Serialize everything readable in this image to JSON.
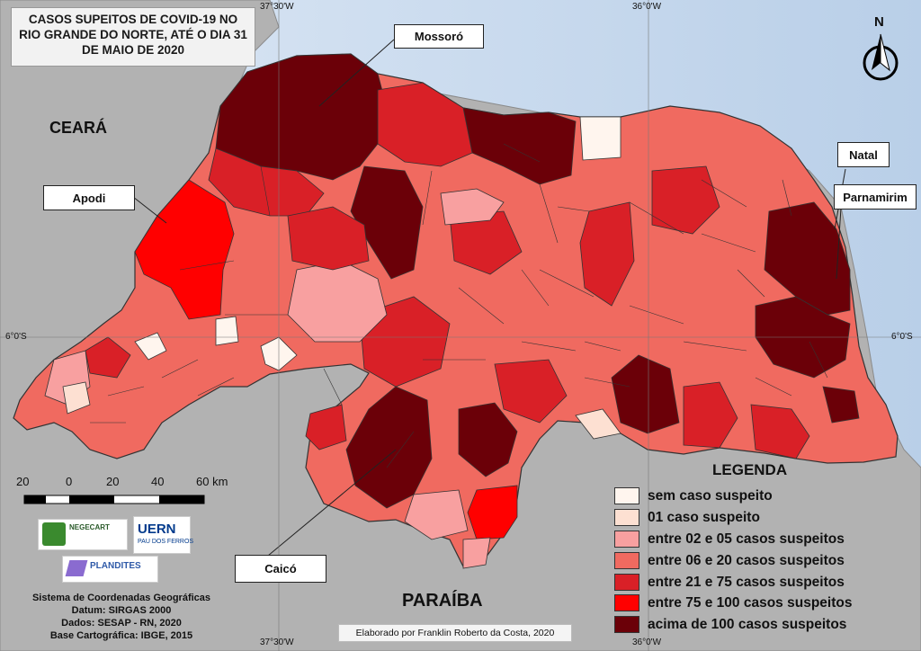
{
  "title": {
    "line1": "CASOS SUPEITOS DE COVID-19 NO",
    "line2": "RIO GRANDE DO NORTE, ATÉ O DIA 31",
    "line3": "DE MAIO DE 2020"
  },
  "regions": {
    "west": "CEARÁ",
    "south": "PARAÍBA"
  },
  "callouts": {
    "mossoro": "Mossoró",
    "apodi": "Apodi",
    "natal": "Natal",
    "parnamirim": "Parnamirim",
    "caico": "Caicó"
  },
  "coordinates": {
    "lon_top_left": "37°30'W",
    "lon_top_right": "36°0'W",
    "lon_bottom_left": "37°30'W",
    "lon_bottom_right": "36°0'W",
    "lat_left": "6°0'S",
    "lat_right": "6°0'S"
  },
  "north_arrow": "N",
  "scale_bar": {
    "labels": [
      "20",
      "0",
      "20",
      "40",
      "60 km"
    ]
  },
  "legend": {
    "title": "LEGENDA",
    "items": [
      {
        "label": "sem caso suspeito",
        "color": "#fff5ee"
      },
      {
        "label": "01 caso suspeito",
        "color": "#fde0d2"
      },
      {
        "label": "entre 02 e 05 casos suspeitos",
        "color": "#f8a0a0"
      },
      {
        "label": "entre 06 e 20 casos suspeitos",
        "color": "#f06a60"
      },
      {
        "label": "entre 21 e 75 casos suspeitos",
        "color": "#d92027"
      },
      {
        "label": "entre 75 e 100 casos suspeitos",
        "color": "#ff0000"
      },
      {
        "label": "acima de 100 casos suspeitos",
        "color": "#6b0008"
      }
    ]
  },
  "logos": {
    "negecart": "NEGECART",
    "uern": "UERN",
    "uern_sub": "PAU DOS FERROS",
    "plandites": "PLANDITES"
  },
  "info": {
    "line1": "Sistema de Coordenadas Geográficas",
    "line2": "Datum: SIRGAS 2000",
    "line3": "Dados: SESAP - RN, 2020",
    "line4": "Base Cartográfica: IBGE, 2015"
  },
  "credit": "Elaborado por Franklin Roberto da Costa, 2020",
  "colors": {
    "land": "#b2b2b2",
    "ocean": "#c5d8ee",
    "border": "#333333"
  }
}
